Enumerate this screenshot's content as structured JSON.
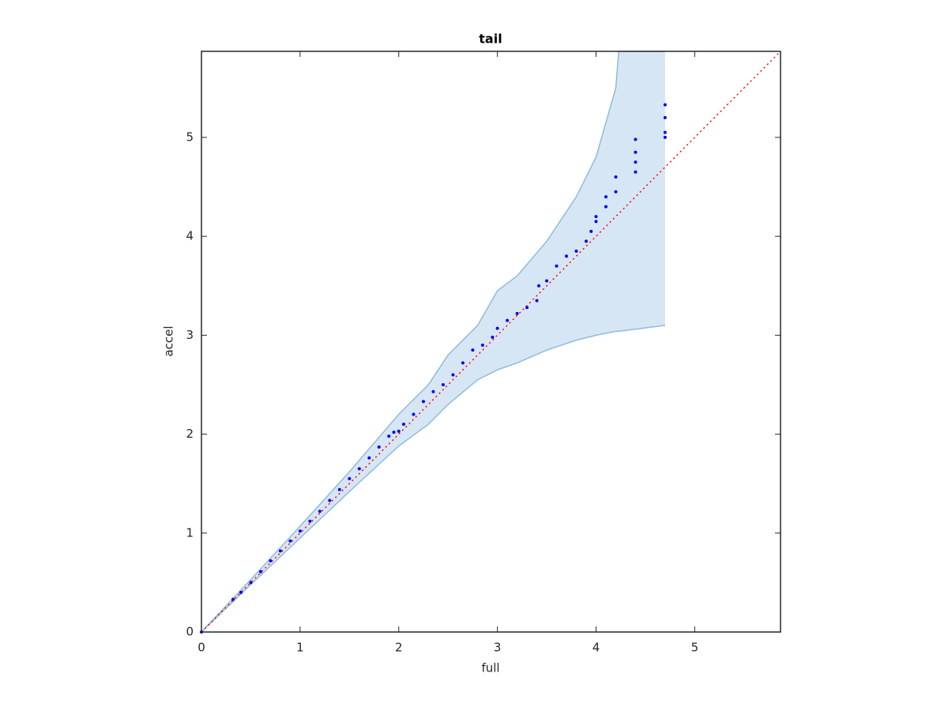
{
  "chart_data": {
    "type": "scatter",
    "title": "tail",
    "xlabel": "full",
    "ylabel": "accel",
    "xlim": [
      0,
      5.87
    ],
    "ylim": [
      0,
      5.87
    ],
    "xticks": [
      0,
      1,
      2,
      3,
      4,
      5
    ],
    "yticks": [
      0,
      1,
      2,
      3,
      4,
      5
    ],
    "grid": false,
    "color": "#0000ff",
    "x": [
      0,
      0.32,
      0.4,
      0.5,
      0.6,
      0.7,
      0.8,
      0.9,
      1.0,
      1.1,
      1.2,
      1.3,
      1.4,
      1.5,
      1.6,
      1.7,
      1.8,
      1.9,
      1.95,
      2.0,
      2.05,
      2.15,
      2.25,
      2.35,
      2.45,
      2.55,
      2.65,
      2.75,
      2.85,
      2.95,
      3.0,
      3.1,
      3.2,
      3.3,
      3.4,
      3.42,
      3.5,
      3.6,
      3.7,
      3.8,
      3.9,
      3.95,
      4.0,
      4.0,
      4.1,
      4.1,
      4.2,
      4.2,
      4.4,
      4.4,
      4.4,
      4.4,
      4.7,
      4.7,
      4.7,
      4.7
    ],
    "values": [
      0,
      0.33,
      0.4,
      0.5,
      0.61,
      0.72,
      0.82,
      0.92,
      1.02,
      1.12,
      1.22,
      1.33,
      1.44,
      1.55,
      1.65,
      1.76,
      1.87,
      1.98,
      2.02,
      2.03,
      2.1,
      2.2,
      2.33,
      2.43,
      2.5,
      2.6,
      2.72,
      2.85,
      2.9,
      2.98,
      3.07,
      3.15,
      3.22,
      3.28,
      3.35,
      3.5,
      3.55,
      3.7,
      3.8,
      3.85,
      3.95,
      4.05,
      4.15,
      4.2,
      4.3,
      4.4,
      4.45,
      4.6,
      4.65,
      4.75,
      4.85,
      4.98,
      5.0,
      5.05,
      5.2,
      5.33
    ],
    "band": {
      "x": [
        0,
        0.5,
        1,
        1.5,
        2,
        2.3,
        2.5,
        2.8,
        3,
        3.2,
        3.5,
        3.8,
        4.0,
        4.2,
        4.23,
        4.7
      ],
      "upper": [
        0,
        0.53,
        1.07,
        1.62,
        2.2,
        2.5,
        2.8,
        3.1,
        3.45,
        3.6,
        3.95,
        4.4,
        4.8,
        5.5,
        5.87,
        5.87
      ],
      "lower": [
        0,
        0.48,
        0.95,
        1.42,
        1.88,
        2.1,
        2.3,
        2.55,
        2.65,
        2.72,
        2.85,
        2.95,
        3.0,
        3.04,
        3.04,
        3.1
      ],
      "color": "#d6e6f4",
      "edge_color": "#8fbcd9"
    },
    "reference": {
      "x": [
        0,
        5.87
      ],
      "values": [
        0,
        5.87
      ],
      "color": "#ff0000"
    }
  }
}
